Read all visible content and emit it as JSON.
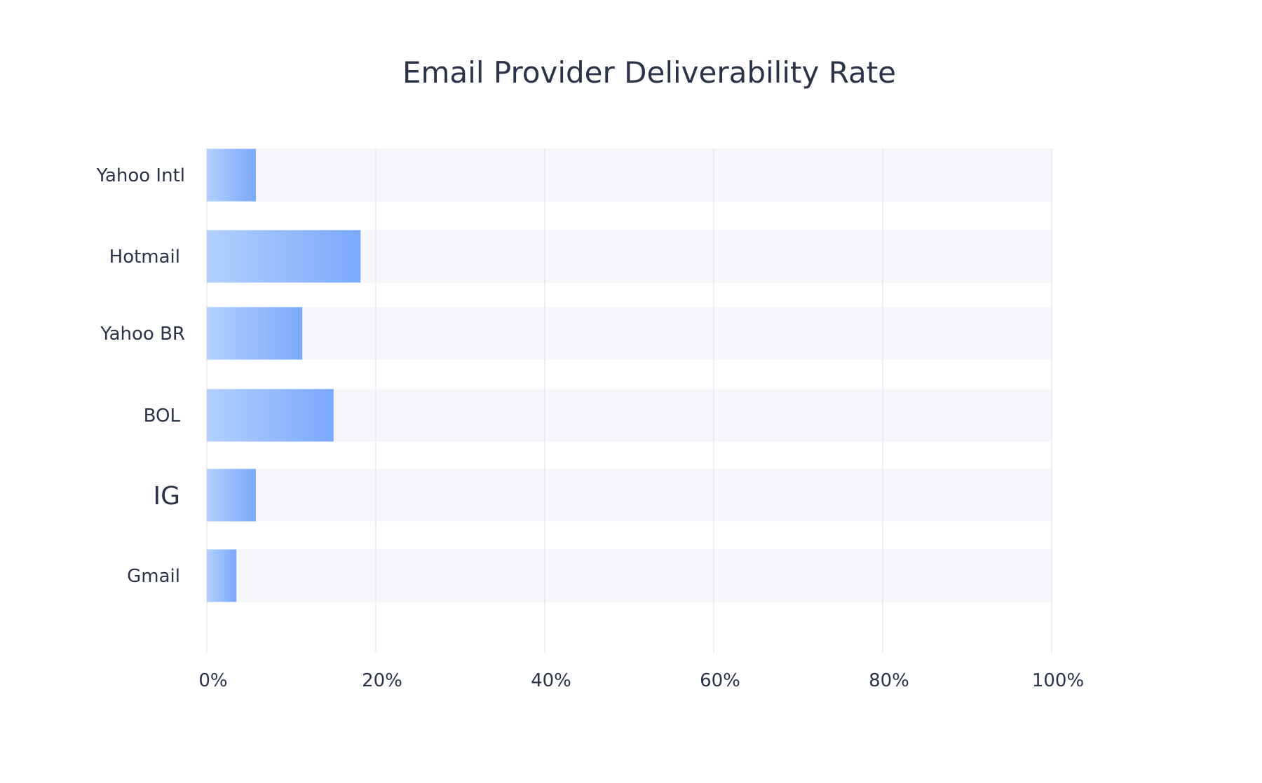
{
  "chart_data": {
    "type": "bar",
    "orientation": "horizontal",
    "title": "Email Provider Deliverability Rate",
    "xlabel": "",
    "ylabel": "",
    "categories": [
      "Yahoo Intl",
      "Hotmail",
      "Yahoo BR",
      "BOL",
      "IG",
      "Gmail"
    ],
    "values": [
      5.8,
      18.2,
      11.3,
      15.0,
      5.8,
      3.5
    ],
    "unit": "%",
    "xlim": [
      0,
      100
    ],
    "xticks": [
      "0%",
      "20%",
      "40%",
      "60%",
      "80%",
      "100%"
    ],
    "grid": true,
    "legend": "none",
    "colors": {
      "bar_light": "#b3d0fd",
      "bar_dark": "#7aa8fb",
      "track": "#f5f6fa",
      "grid": "#e6e8ee",
      "text": "#2a3348"
    }
  }
}
